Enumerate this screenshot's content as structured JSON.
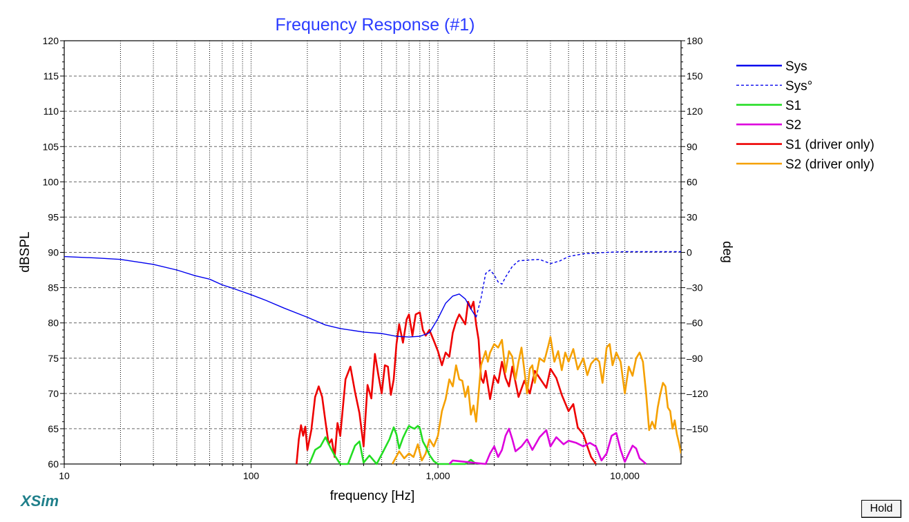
{
  "chart_data": {
    "type": "line",
    "title": "Frequency Response (#1)",
    "xlabel": "frequency [Hz]",
    "ylabel": "dBSPL",
    "y2label": "deg",
    "x_scale": "log",
    "xlim": [
      10,
      20000
    ],
    "ylim": [
      60,
      120
    ],
    "y2lim": [
      -180,
      180
    ],
    "x_tick_labels": [
      {
        "value": 10,
        "label": "10"
      },
      {
        "value": 100,
        "label": "100"
      },
      {
        "value": 1000,
        "label": "1,000"
      },
      {
        "value": 10000,
        "label": "10,000"
      }
    ],
    "y_ticks": [
      60,
      65,
      70,
      75,
      80,
      85,
      90,
      95,
      100,
      105,
      110,
      115,
      120
    ],
    "y2_ticks": [
      -150,
      -120,
      -90,
      -60,
      -30,
      0,
      30,
      60,
      90,
      120,
      150,
      180
    ],
    "grid": true,
    "legend_position": "right",
    "series": [
      {
        "name": "Sys",
        "color": "#0000ee",
        "dash": "solid",
        "axis": "left",
        "x": [
          10,
          15,
          20,
          30,
          40,
          50,
          60,
          70,
          80,
          100,
          120,
          150,
          200,
          250,
          300,
          400,
          500,
          600,
          700,
          800,
          900,
          1000,
          1100,
          1200,
          1300,
          1400,
          1500,
          1600
        ],
        "y": [
          89.4,
          89.2,
          89.0,
          88.3,
          87.5,
          86.7,
          86.2,
          85.4,
          84.9,
          84.0,
          83.2,
          82.1,
          80.8,
          79.7,
          79.2,
          78.7,
          78.5,
          78.1,
          78.0,
          78.1,
          78.6,
          80.6,
          82.8,
          83.8,
          84.1,
          83.4,
          82.0,
          80.8
        ]
      },
      {
        "name": "Sys°",
        "color": "#0000ee",
        "dash": "dashed",
        "axis": "left",
        "x": [
          1600,
          1700,
          1800,
          1900,
          2000,
          2100,
          2200,
          2300,
          2500,
          2700,
          3000,
          3500,
          4000,
          4500,
          5000,
          6000,
          7000,
          8000,
          10000,
          15000,
          20000
        ],
        "y": [
          80.8,
          83.5,
          87.0,
          87.5,
          86.8,
          85.8,
          85.5,
          86.5,
          88.0,
          88.8,
          88.9,
          89.0,
          88.4,
          88.8,
          89.4,
          89.8,
          89.9,
          90.0,
          90.1,
          90.1,
          90.1
        ]
      },
      {
        "name": "S1",
        "color": "#22dd22",
        "dash": "solid",
        "axis": "left",
        "x": [
          205,
          220,
          235,
          250,
          265,
          280,
          300,
          330,
          360,
          380,
          400,
          430,
          470,
          510,
          550,
          580,
          600,
          620,
          650,
          680,
          700,
          720,
          750,
          780,
          800,
          830,
          870,
          900,
          950,
          1000,
          1400,
          1500,
          1550,
          1600
        ],
        "y": [
          60,
          62.0,
          62.5,
          63.8,
          62.4,
          61.2,
          60,
          60,
          62.6,
          63.2,
          60.2,
          61.2,
          60,
          61.8,
          63.5,
          65.2,
          64.2,
          62.2,
          63.7,
          64.8,
          65.4,
          65.2,
          65.0,
          65.4,
          65.1,
          63.2,
          62.2,
          61.3,
          60.4,
          60,
          60,
          60.6,
          60.3,
          60
        ]
      },
      {
        "name": "S2",
        "color": "#dd00dd",
        "dash": "solid",
        "axis": "left",
        "x": [
          1150,
          1200,
          1800,
          1900,
          2000,
          2100,
          2200,
          2300,
          2400,
          2500,
          2600,
          2800,
          3000,
          3200,
          3500,
          3800,
          4000,
          4300,
          4700,
          5000,
          5500,
          6000,
          6500,
          7000,
          7500,
          8000,
          8500,
          9000,
          9500,
          10000,
          10500,
          11000,
          11500,
          12000,
          12500,
          13000
        ],
        "y": [
          60,
          60.5,
          60,
          61.5,
          62.5,
          61.0,
          62.0,
          64.0,
          65.0,
          63.5,
          61.8,
          62.5,
          63.5,
          62.0,
          63.8,
          64.8,
          62.5,
          63.8,
          62.8,
          63.3,
          63.0,
          62.5,
          63.0,
          62.5,
          60.5,
          61.5,
          64.0,
          64.4,
          62.0,
          60.3,
          61.5,
          62.6,
          62.2,
          60.8,
          60.4,
          60
        ]
      },
      {
        "name": "S1 (driver only)",
        "color": "#ee0000",
        "dash": "solid",
        "axis": "left",
        "x": [
          175,
          180,
          185,
          190,
          195,
          200,
          210,
          220,
          230,
          240,
          250,
          260,
          270,
          280,
          290,
          300,
          320,
          340,
          360,
          380,
          400,
          420,
          440,
          460,
          480,
          500,
          520,
          540,
          560,
          580,
          600,
          620,
          650,
          680,
          700,
          730,
          760,
          800,
          830,
          860,
          900,
          950,
          1000,
          1050,
          1100,
          1150,
          1200,
          1250,
          1300,
          1350,
          1400,
          1450,
          1500,
          1550,
          1600,
          1650,
          1700,
          1750,
          1800,
          1900,
          2000,
          2100,
          2200,
          2300,
          2400,
          2500,
          2700,
          2900,
          3100,
          3300,
          3500,
          3800,
          4000,
          4300,
          4600,
          5000,
          5300,
          5600,
          6000,
          6300,
          6600,
          7000
        ],
        "y": [
          60,
          63.5,
          65.5,
          64.0,
          65.3,
          62.0,
          64.8,
          69.5,
          71.0,
          69.5,
          66.0,
          62.8,
          63.5,
          61.0,
          65.8,
          64.0,
          72.0,
          73.8,
          70.2,
          67.2,
          62.5,
          71.2,
          69.3,
          75.6,
          72.6,
          70.0,
          74.0,
          73.8,
          69.8,
          72.0,
          77.0,
          79.8,
          77.2,
          80.5,
          81.2,
          78.2,
          81.2,
          81.5,
          79.0,
          78.2,
          79.0,
          77.5,
          76.0,
          74.0,
          75.8,
          75.2,
          78.6,
          80.2,
          81.2,
          80.5,
          79.8,
          83.0,
          82.0,
          83.0,
          79.8,
          77.6,
          72.2,
          71.5,
          73.2,
          69.2,
          72.5,
          71.5,
          74.5,
          72.2,
          71.0,
          73.8,
          69.5,
          71.8,
          70.0,
          73.2,
          72.2,
          70.8,
          73.5,
          72.2,
          69.8,
          67.5,
          68.5,
          65.2,
          64.2,
          62.5,
          61.0,
          60
        ]
      },
      {
        "name": "S2 (driver only)",
        "color": "#f5a000",
        "dash": "solid",
        "axis": "left",
        "x": [
          570,
          620,
          660,
          700,
          740,
          780,
          820,
          860,
          900,
          950,
          1000,
          1050,
          1100,
          1150,
          1200,
          1250,
          1300,
          1350,
          1400,
          1450,
          1500,
          1550,
          1600,
          1650,
          1700,
          1750,
          1800,
          1850,
          1900,
          2000,
          2100,
          2200,
          2300,
          2400,
          2500,
          2600,
          2700,
          2800,
          2900,
          3000,
          3100,
          3200,
          3300,
          3500,
          3700,
          3900,
          4000,
          4200,
          4400,
          4600,
          4800,
          5000,
          5300,
          5600,
          6000,
          6300,
          6600,
          7000,
          7300,
          7600,
          8000,
          8300,
          8600,
          9000,
          9500,
          10000,
          10500,
          11000,
          11500,
          12000,
          12500,
          13000,
          13500,
          14000,
          14500,
          15000,
          15500,
          16000,
          16500,
          17000,
          17500,
          18000,
          18500,
          19000,
          19500,
          20000
        ],
        "y": [
          60,
          61.8,
          60.8,
          61.5,
          61.0,
          62.8,
          60.5,
          61.5,
          63.5,
          62.5,
          64.0,
          67.5,
          69.2,
          72.0,
          71.0,
          74.0,
          72.0,
          71.8,
          69.5,
          71.0,
          67.0,
          68.3,
          66.0,
          70.0,
          74.0,
          75.0,
          76.0,
          74.5,
          75.8,
          77.0,
          76.5,
          77.6,
          73.0,
          76.0,
          75.2,
          72.0,
          74.5,
          76.5,
          73.3,
          70.0,
          73.5,
          74.0,
          71.5,
          75.0,
          74.5,
          76.8,
          78.0,
          74.5,
          76.0,
          73.3,
          75.8,
          74.5,
          76.3,
          73.4,
          75.0,
          72.6,
          74.2,
          75.0,
          74.5,
          71.5,
          76.5,
          77.0,
          74.0,
          75.8,
          74.5,
          70.0,
          73.8,
          72.5,
          75.0,
          75.8,
          74.5,
          70.0,
          64.8,
          66.0,
          65.0,
          68.0,
          70.0,
          71.5,
          71.0,
          68.0,
          67.5,
          65.0,
          66.2,
          64.2,
          63.0,
          61.5
        ]
      }
    ]
  },
  "ui": {
    "brand": "XSim",
    "hold_label": "Hold"
  }
}
